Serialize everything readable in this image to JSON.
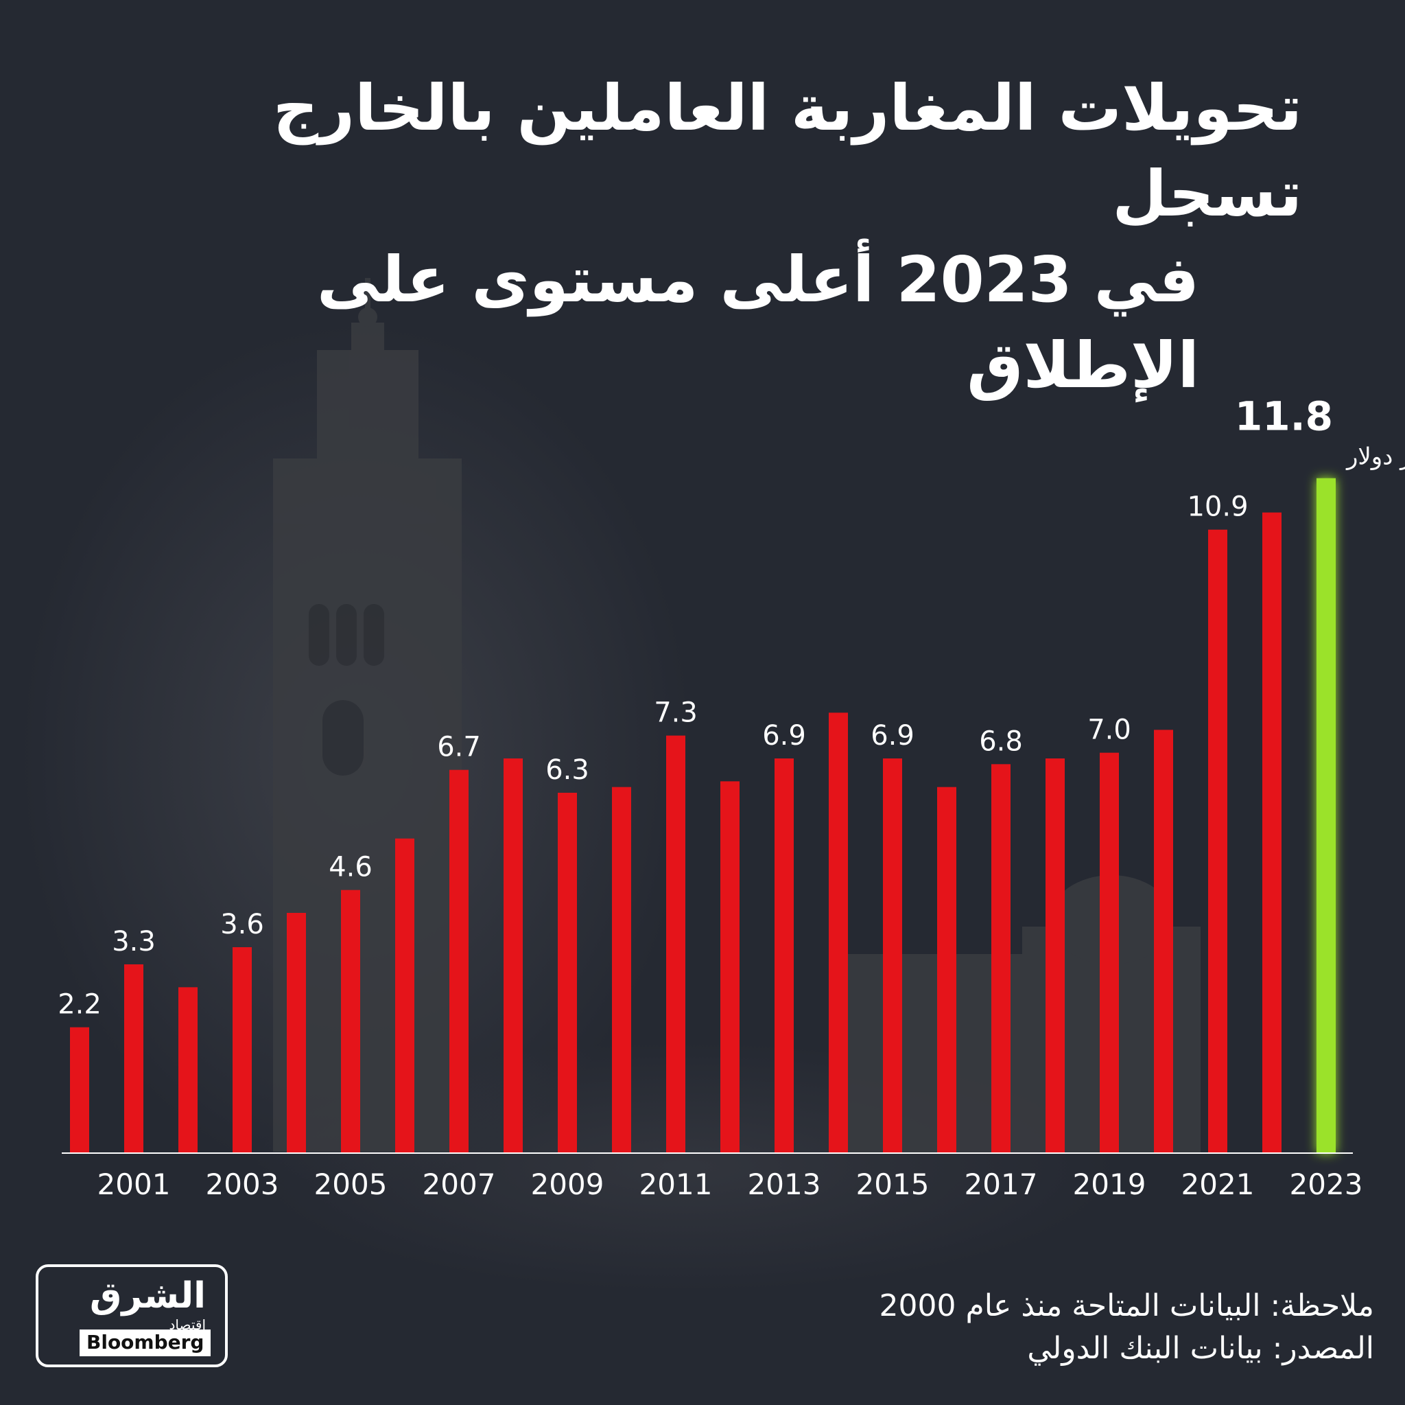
{
  "title": {
    "line1": "تحويلات المغاربة العاملين بالخارج تسجل",
    "line2": "في 2023 أعلى مستوى على الإطلاق"
  },
  "chart_data": {
    "type": "bar",
    "title": "",
    "xlabel": "",
    "ylabel": "",
    "categories": [
      "2000",
      "2001",
      "2002",
      "2003",
      "2004",
      "2005",
      "2006",
      "2007",
      "2008",
      "2009",
      "2010",
      "2011",
      "2012",
      "2013",
      "2014",
      "2015",
      "2016",
      "2017",
      "2018",
      "2019",
      "2020",
      "2021",
      "2022",
      "2023"
    ],
    "values": [
      2.2,
      3.3,
      2.9,
      3.6,
      4.2,
      4.6,
      5.5,
      6.7,
      6.9,
      6.3,
      6.4,
      7.3,
      6.5,
      6.9,
      7.7,
      6.9,
      6.4,
      6.8,
      6.9,
      7.0,
      7.4,
      10.9,
      11.2,
      11.8
    ],
    "data_labels": {
      "2000": "2.2",
      "2001": "3.3",
      "2003": "3.6",
      "2005": "4.6",
      "2007": "6.7",
      "2009": "6.3",
      "2011": "7.3",
      "2013": "6.9",
      "2015": "6.9",
      "2017": "6.8",
      "2019": "7.0",
      "2021": "10.9"
    },
    "tick_labels": [
      "2001",
      "2003",
      "2005",
      "2007",
      "2009",
      "2011",
      "2013",
      "2015",
      "2017",
      "2019",
      "2021",
      "2023"
    ],
    "highlight": {
      "category": "2023",
      "value_label": "11.8",
      "unit_label": "مليار دولار",
      "color": "#9be22c"
    },
    "bar_color": "#e5141a",
    "ylim": [
      0,
      12
    ],
    "grid": false,
    "legend": "none"
  },
  "footer": {
    "note": "ملاحظة: البيانات المتاحة منذ عام 2000",
    "source": "المصدر: بيانات البنك الدولي"
  },
  "logo": {
    "name": "الشرق",
    "sub": "اقتصاد",
    "partner": "Bloomberg"
  }
}
